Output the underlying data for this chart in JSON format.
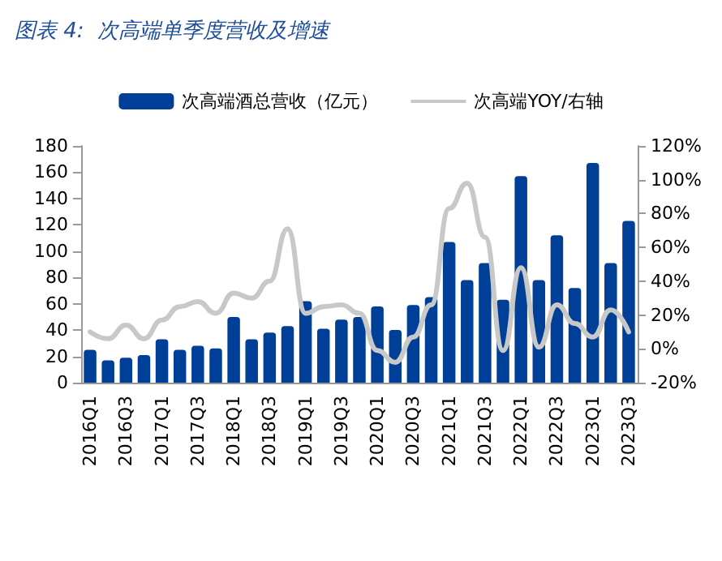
{
  "chart_data": {
    "type": "bar",
    "title": "图表 4:  次高端单季度营收及增速",
    "categories": [
      "2016Q1",
      null,
      "2016Q3",
      null,
      "2017Q1",
      null,
      "2017Q3",
      null,
      "2018Q1",
      null,
      "2018Q3",
      null,
      "2019Q1",
      null,
      "2019Q3",
      null,
      "2020Q1",
      null,
      "2020Q3",
      null,
      "2021Q1",
      null,
      "2021Q3",
      null,
      "2022Q1",
      null,
      "2022Q3",
      null,
      "2023Q1",
      null,
      "2023Q3"
    ],
    "series": [
      {
        "name": "次高端酒总营收（亿元）",
        "color": "#003f98",
        "values": [
          25,
          17,
          19,
          21,
          33,
          25,
          28,
          26,
          50,
          33,
          38,
          43,
          62,
          41,
          48,
          50,
          58,
          40,
          59,
          65,
          107,
          78,
          91,
          63,
          157,
          78,
          112,
          72,
          167,
          91,
          123
        ]
      },
      {
        "name": "次高端YOY/右轴",
        "type": "line",
        "axis": "y2",
        "color": "#c8c8c8",
        "values": [
          10,
          6,
          14,
          6,
          17,
          25,
          28,
          21,
          33,
          30,
          40,
          71,
          21,
          25,
          26,
          21,
          -1,
          -8,
          7,
          26,
          83,
          98,
          66,
          -1,
          48,
          1,
          26,
          15,
          7,
          23,
          10
        ]
      }
    ],
    "ylim": [
      0,
      180
    ],
    "yticks": [
      0,
      20,
      40,
      60,
      80,
      100,
      120,
      140,
      160,
      180
    ],
    "y2lim": [
      -20,
      120
    ],
    "y2ticks": [
      {
        "value": -20,
        "label": "-20%"
      },
      {
        "value": 0,
        "label": "0%"
      },
      {
        "value": 20,
        "label": "20%"
      },
      {
        "value": 40,
        "label": "40%"
      },
      {
        "value": 60,
        "label": "60%"
      },
      {
        "value": 80,
        "label": "80%"
      },
      {
        "value": 100,
        "label": "100%"
      },
      {
        "value": 120,
        "label": "120%"
      }
    ],
    "legend": "top",
    "grid": false,
    "marker": "none",
    "line_style": "solid"
  }
}
